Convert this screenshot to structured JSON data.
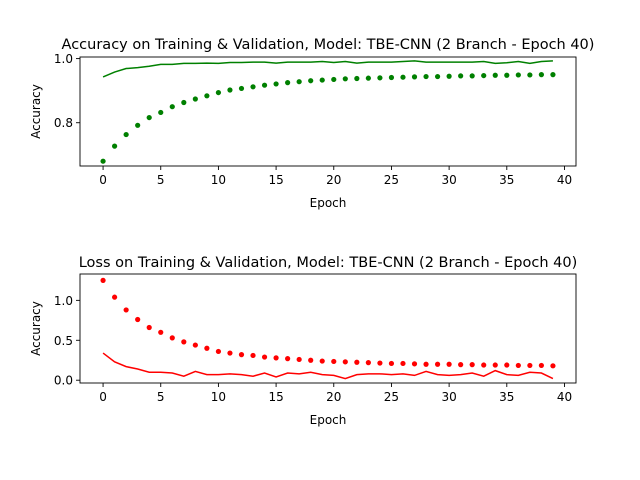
{
  "chart_data": [
    {
      "type": "line",
      "title": "Accuracy on Training & Validation, Model: TBE-CNN (2 Branch - Epoch 40)",
      "xlabel": "Epoch",
      "ylabel": "Accuracy",
      "xlim": [
        -2,
        41
      ],
      "ylim": [
        0.665,
        1.005
      ],
      "xticks": [
        0,
        5,
        10,
        15,
        20,
        25,
        30,
        35,
        40
      ],
      "yticks": [
        0.8,
        1.0
      ],
      "ytick_labels": [
        "0.8",
        "1.0"
      ],
      "grid": false,
      "series": [
        {
          "style": "line",
          "color": "#008000",
          "x": [
            0,
            1,
            2,
            3,
            4,
            5,
            6,
            7,
            8,
            9,
            10,
            11,
            12,
            13,
            14,
            15,
            16,
            17,
            18,
            19,
            20,
            21,
            22,
            23,
            24,
            25,
            26,
            27,
            28,
            29,
            30,
            31,
            32,
            33,
            34,
            35,
            36,
            37,
            38,
            39
          ],
          "values": [
            0.943,
            0.958,
            0.969,
            0.972,
            0.976,
            0.982,
            0.982,
            0.985,
            0.985,
            0.986,
            0.985,
            0.988,
            0.988,
            0.989,
            0.989,
            0.986,
            0.989,
            0.989,
            0.989,
            0.991,
            0.988,
            0.991,
            0.986,
            0.989,
            0.989,
            0.989,
            0.991,
            0.993,
            0.989,
            0.989,
            0.989,
            0.989,
            0.989,
            0.991,
            0.985,
            0.987,
            0.991,
            0.985,
            0.991,
            0.993
          ]
        },
        {
          "style": "dots",
          "color": "#008000",
          "x": [
            0,
            1,
            2,
            3,
            4,
            5,
            6,
            7,
            8,
            9,
            10,
            11,
            12,
            13,
            14,
            15,
            16,
            17,
            18,
            19,
            20,
            21,
            22,
            23,
            24,
            25,
            26,
            27,
            28,
            29,
            30,
            31,
            32,
            33,
            34,
            35,
            36,
            37,
            38,
            39
          ],
          "values": [
            0.68,
            0.727,
            0.763,
            0.792,
            0.816,
            0.832,
            0.85,
            0.863,
            0.874,
            0.884,
            0.894,
            0.902,
            0.907,
            0.912,
            0.917,
            0.921,
            0.925,
            0.928,
            0.931,
            0.933,
            0.935,
            0.937,
            0.938,
            0.939,
            0.94,
            0.941,
            0.942,
            0.943,
            0.944,
            0.944,
            0.945,
            0.946,
            0.946,
            0.947,
            0.948,
            0.948,
            0.949,
            0.949,
            0.95,
            0.95
          ]
        }
      ]
    },
    {
      "type": "line",
      "title": "Loss on Training & Validation, Model: TBE-CNN (2 Branch - Epoch 40)",
      "xlabel": "Epoch",
      "ylabel": "Accuracy",
      "xlim": [
        -2,
        41
      ],
      "ylim": [
        -0.035,
        1.33
      ],
      "xticks": [
        0,
        5,
        10,
        15,
        20,
        25,
        30,
        35,
        40
      ],
      "yticks": [
        0.0,
        0.5,
        1.0
      ],
      "ytick_labels": [
        "0.0",
        "0.5",
        "1.0"
      ],
      "grid": false,
      "series": [
        {
          "style": "line",
          "color": "#ff0000",
          "x": [
            0,
            1,
            2,
            3,
            4,
            5,
            6,
            7,
            8,
            9,
            10,
            11,
            12,
            13,
            14,
            15,
            16,
            17,
            18,
            19,
            20,
            21,
            22,
            23,
            24,
            25,
            26,
            27,
            28,
            29,
            30,
            31,
            32,
            33,
            34,
            35,
            36,
            37,
            38,
            39
          ],
          "values": [
            0.34,
            0.23,
            0.17,
            0.14,
            0.1,
            0.1,
            0.09,
            0.05,
            0.11,
            0.07,
            0.07,
            0.08,
            0.07,
            0.05,
            0.09,
            0.04,
            0.09,
            0.08,
            0.1,
            0.07,
            0.06,
            0.02,
            0.07,
            0.08,
            0.08,
            0.07,
            0.08,
            0.06,
            0.11,
            0.07,
            0.06,
            0.07,
            0.09,
            0.05,
            0.12,
            0.07,
            0.06,
            0.1,
            0.09,
            0.02
          ]
        },
        {
          "style": "dots",
          "color": "#ff0000",
          "x": [
            0,
            1,
            2,
            3,
            4,
            5,
            6,
            7,
            8,
            9,
            10,
            11,
            12,
            13,
            14,
            15,
            16,
            17,
            18,
            19,
            20,
            21,
            22,
            23,
            24,
            25,
            26,
            27,
            28,
            29,
            30,
            31,
            32,
            33,
            34,
            35,
            36,
            37,
            38,
            39
          ],
          "values": [
            1.25,
            1.04,
            0.88,
            0.76,
            0.66,
            0.6,
            0.53,
            0.48,
            0.44,
            0.4,
            0.36,
            0.34,
            0.32,
            0.31,
            0.29,
            0.28,
            0.27,
            0.26,
            0.25,
            0.24,
            0.235,
            0.23,
            0.225,
            0.22,
            0.215,
            0.21,
            0.21,
            0.205,
            0.2,
            0.2,
            0.2,
            0.195,
            0.195,
            0.19,
            0.19,
            0.19,
            0.185,
            0.185,
            0.185,
            0.18
          ]
        }
      ]
    }
  ]
}
